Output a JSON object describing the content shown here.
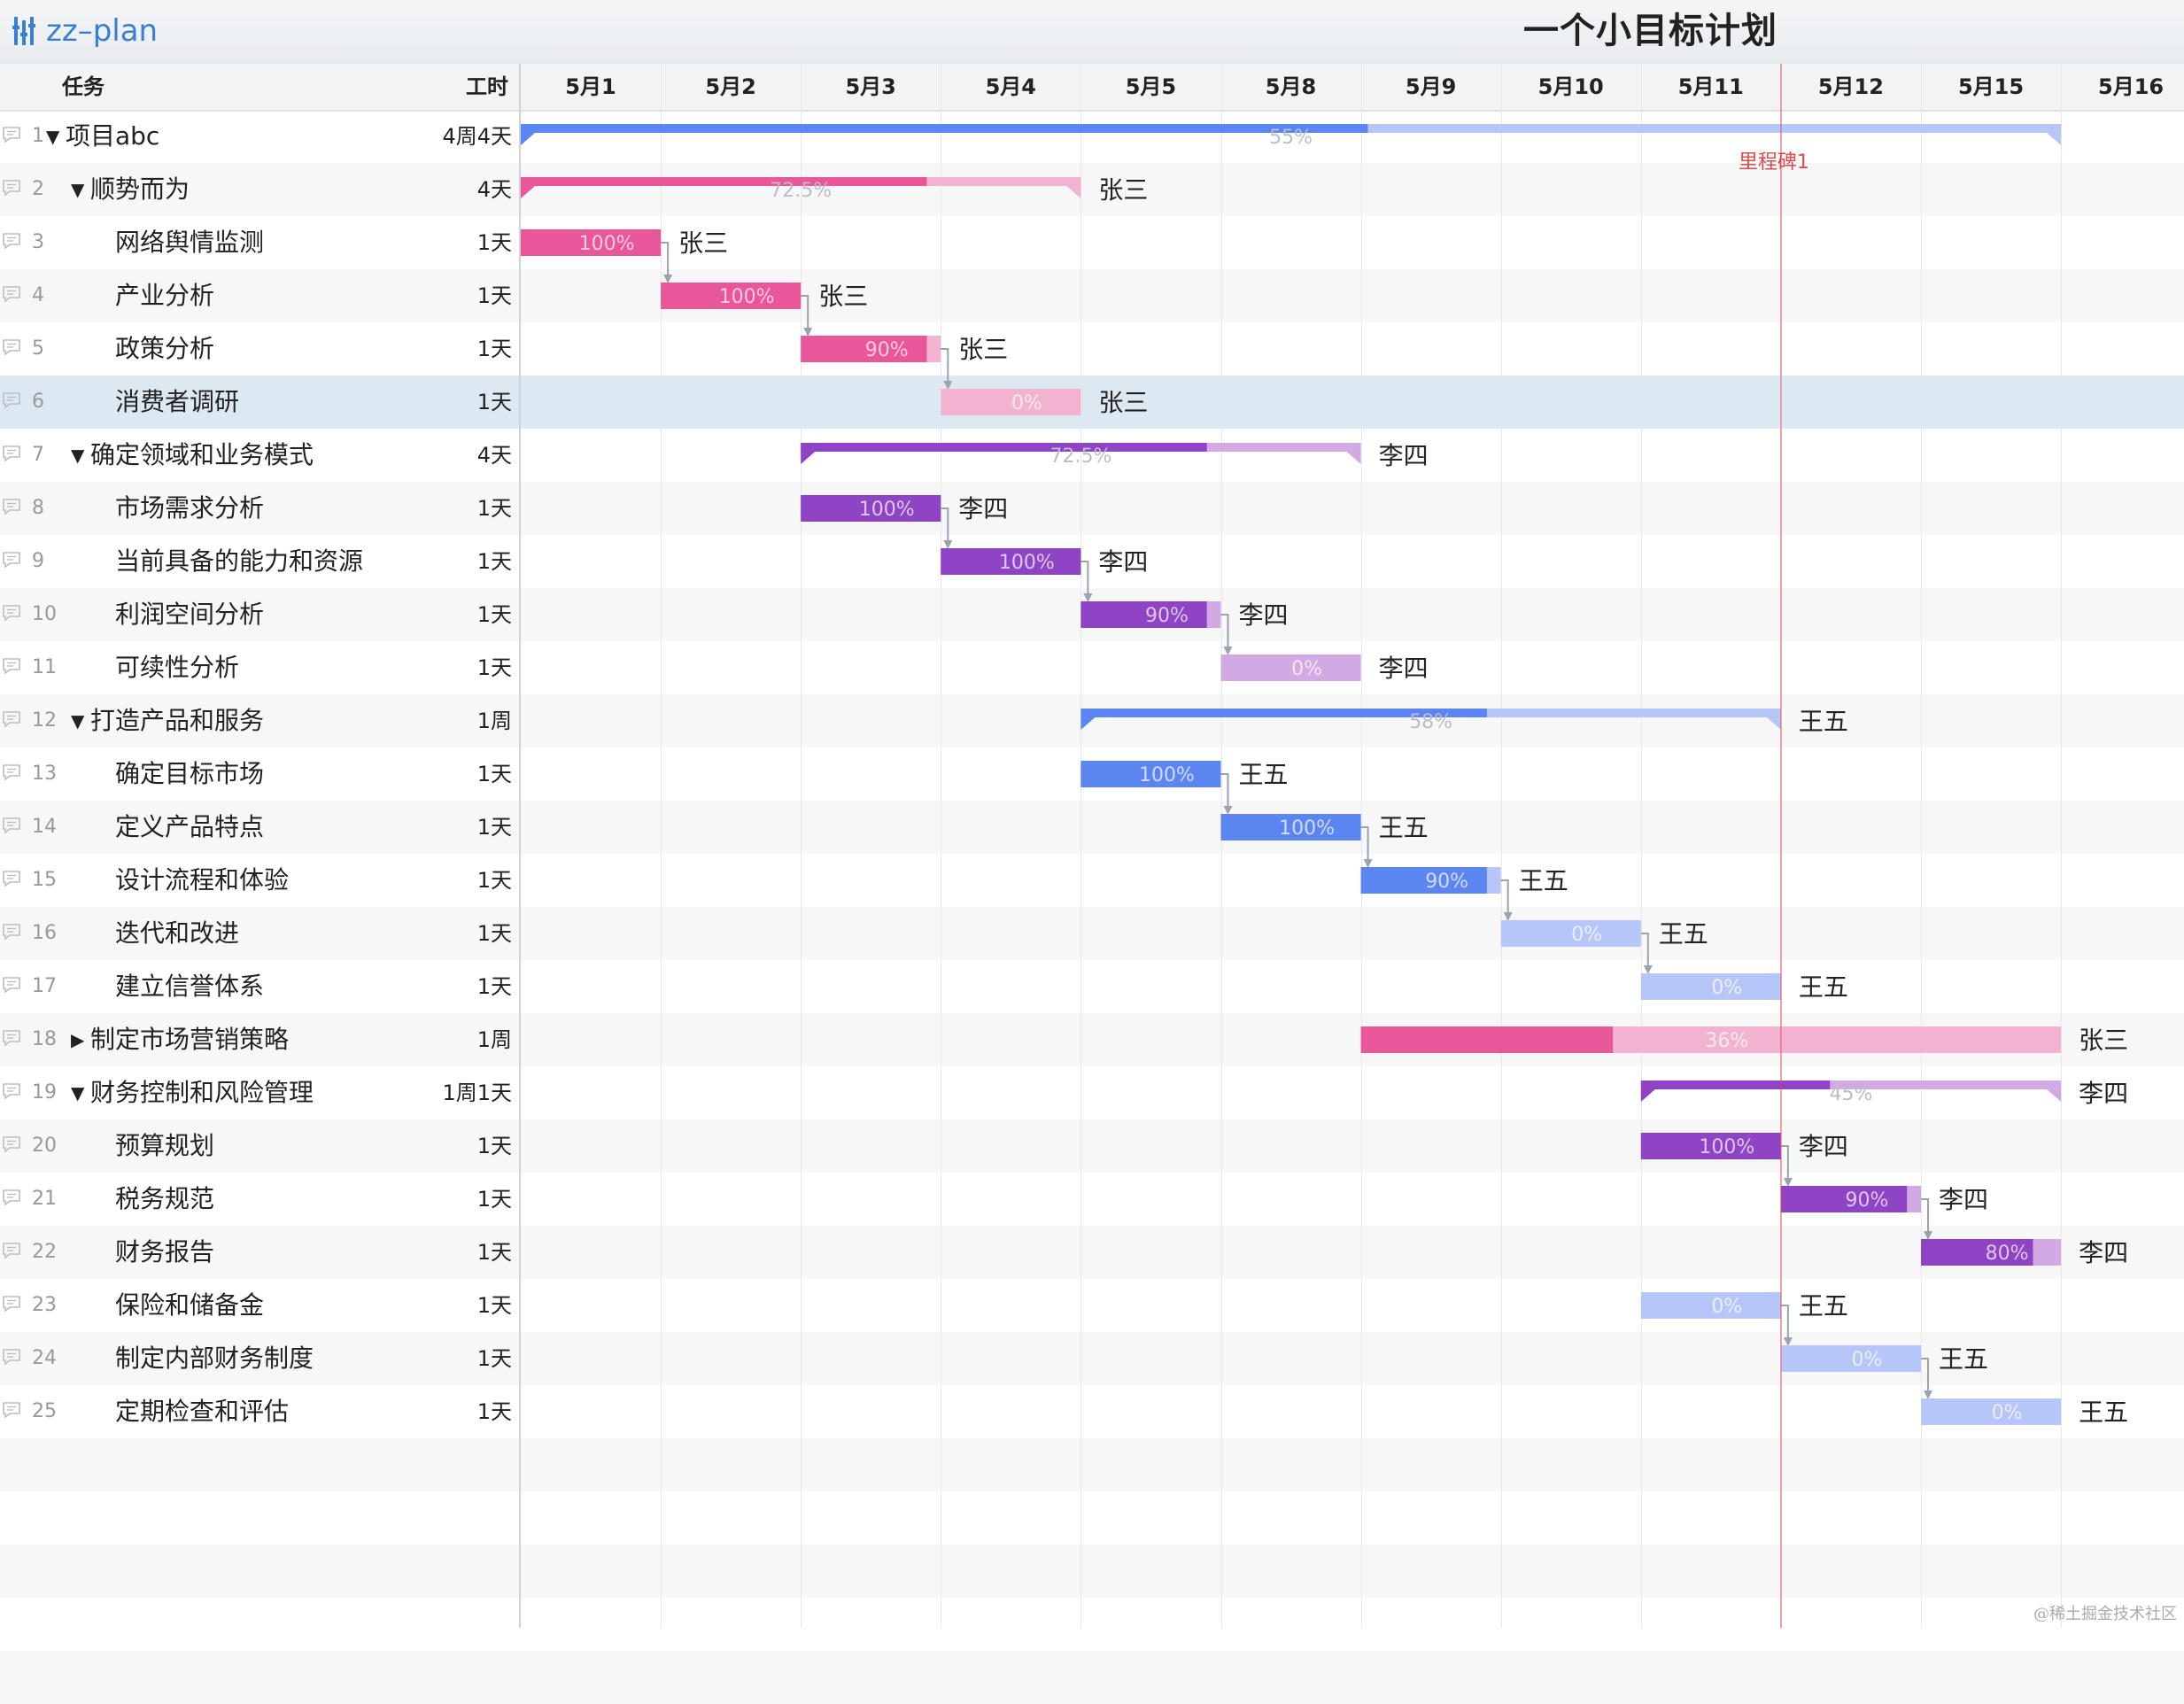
{
  "app": {
    "name": "zz–plan",
    "title": "一个小目标计划",
    "watermark": "@稀土掘金技术社区"
  },
  "columns": {
    "task": "任务",
    "duration": "工时"
  },
  "dates": [
    "5月1",
    "5月2",
    "5月3",
    "5月4",
    "5月5",
    "5月8",
    "5月9",
    "5月10",
    "5月11",
    "5月12",
    "5月15",
    "5月16"
  ],
  "milestone": {
    "label": "里程碑1",
    "position_day": 9
  },
  "colors": {
    "pink": "#e9579a",
    "pink_light": "#f2b3d0",
    "purple": "#8e44c4",
    "purple_light": "#d3a9e3",
    "blue": "#5b86f2",
    "blue_light": "#b7c6f8",
    "milestone": "#e24848",
    "selected_row": "#dce8f2"
  },
  "tasks": [
    {
      "id": "1",
      "name": "项目abc",
      "duration": "4周4天",
      "level": 0,
      "toggle": "▼",
      "type": "summary",
      "color": "blue",
      "start": 0,
      "end": 11,
      "progress": 55,
      "label": "55%",
      "assignee": ""
    },
    {
      "id": "2",
      "name": "顺势而为",
      "duration": "4天",
      "level": 1,
      "toggle": "▼",
      "type": "summary",
      "color": "pink",
      "start": 0,
      "end": 4,
      "progress": 72.5,
      "label": "72.5%",
      "assignee": "张三"
    },
    {
      "id": "3",
      "name": "网络舆情监测",
      "duration": "1天",
      "level": 2,
      "toggle": "",
      "type": "task",
      "color": "pink",
      "start": 0,
      "end": 1,
      "progress": 100,
      "label": "100%",
      "assignee": "张三",
      "link_to_next": true
    },
    {
      "id": "4",
      "name": "产业分析",
      "duration": "1天",
      "level": 2,
      "toggle": "",
      "type": "task",
      "color": "pink",
      "start": 1,
      "end": 2,
      "progress": 100,
      "label": "100%",
      "assignee": "张三",
      "link_to_next": true
    },
    {
      "id": "5",
      "name": "政策分析",
      "duration": "1天",
      "level": 2,
      "toggle": "",
      "type": "task",
      "color": "pink",
      "start": 2,
      "end": 3,
      "progress": 90,
      "label": "90%",
      "assignee": "张三",
      "link_to_next": true
    },
    {
      "id": "6",
      "name": "消费者调研",
      "duration": "1天",
      "level": 2,
      "toggle": "",
      "type": "task",
      "color": "pink",
      "start": 3,
      "end": 4,
      "progress": 0,
      "label": "0%",
      "assignee": "张三",
      "selected": true
    },
    {
      "id": "7",
      "name": "确定领域和业务模式",
      "duration": "4天",
      "level": 1,
      "toggle": "▼",
      "type": "summary",
      "color": "purple",
      "start": 2,
      "end": 6,
      "progress": 72.5,
      "label": "72.5%",
      "assignee": "李四"
    },
    {
      "id": "8",
      "name": "市场需求分析",
      "duration": "1天",
      "level": 2,
      "toggle": "",
      "type": "task",
      "color": "purple",
      "start": 2,
      "end": 3,
      "progress": 100,
      "label": "100%",
      "assignee": "李四",
      "link_to_next": true
    },
    {
      "id": "9",
      "name": "当前具备的能力和资源",
      "duration": "1天",
      "level": 2,
      "toggle": "",
      "type": "task",
      "color": "purple",
      "start": 3,
      "end": 4,
      "progress": 100,
      "label": "100%",
      "assignee": "李四",
      "link_to_next": true
    },
    {
      "id": "10",
      "name": "利润空间分析",
      "duration": "1天",
      "level": 2,
      "toggle": "",
      "type": "task",
      "color": "purple",
      "start": 4,
      "end": 5,
      "progress": 90,
      "label": "90%",
      "assignee": "李四",
      "link_to_next": true
    },
    {
      "id": "11",
      "name": "可续性分析",
      "duration": "1天",
      "level": 2,
      "toggle": "",
      "type": "task",
      "color": "purple",
      "start": 5,
      "end": 6,
      "progress": 0,
      "label": "0%",
      "assignee": "李四"
    },
    {
      "id": "12",
      "name": "打造产品和服务",
      "duration": "1周",
      "level": 1,
      "toggle": "▼",
      "type": "summary",
      "color": "blue",
      "start": 4,
      "end": 9,
      "progress": 58,
      "label": "58%",
      "assignee": "王五"
    },
    {
      "id": "13",
      "name": "确定目标市场",
      "duration": "1天",
      "level": 2,
      "toggle": "",
      "type": "task",
      "color": "blue",
      "start": 4,
      "end": 5,
      "progress": 100,
      "label": "100%",
      "assignee": "王五",
      "link_to_next": true
    },
    {
      "id": "14",
      "name": "定义产品特点",
      "duration": "1天",
      "level": 2,
      "toggle": "",
      "type": "task",
      "color": "blue",
      "start": 5,
      "end": 6,
      "progress": 100,
      "label": "100%",
      "assignee": "王五",
      "link_to_next": true
    },
    {
      "id": "15",
      "name": "设计流程和体验",
      "duration": "1天",
      "level": 2,
      "toggle": "",
      "type": "task",
      "color": "blue",
      "start": 6,
      "end": 7,
      "progress": 90,
      "label": "90%",
      "assignee": "王五",
      "link_to_next": true
    },
    {
      "id": "16",
      "name": "迭代和改进",
      "duration": "1天",
      "level": 2,
      "toggle": "",
      "type": "task",
      "color": "blue",
      "start": 7,
      "end": 8,
      "progress": 0,
      "label": "0%",
      "assignee": "王五",
      "link_to_next": true
    },
    {
      "id": "17",
      "name": "建立信誉体系",
      "duration": "1天",
      "level": 2,
      "toggle": "",
      "type": "task",
      "color": "blue",
      "start": 8,
      "end": 9,
      "progress": 0,
      "label": "0%",
      "assignee": "王五"
    },
    {
      "id": "18",
      "name": "制定市场营销策略",
      "duration": "1周",
      "level": 1,
      "toggle": "▶",
      "type": "task",
      "color": "pink",
      "start": 6,
      "end": 11,
      "progress": 36,
      "label": "36%",
      "assignee": "张三"
    },
    {
      "id": "19",
      "name": "财务控制和风险管理",
      "duration": "1周1天",
      "level": 1,
      "toggle": "▼",
      "type": "summary",
      "color": "purple",
      "start": 8,
      "end": 11,
      "progress": 45,
      "label": "45%",
      "assignee": "李四"
    },
    {
      "id": "20",
      "name": "预算规划",
      "duration": "1天",
      "level": 2,
      "toggle": "",
      "type": "task",
      "color": "purple",
      "start": 8,
      "end": 9,
      "progress": 100,
      "label": "100%",
      "assignee": "李四",
      "link_to_next": true
    },
    {
      "id": "21",
      "name": "税务规范",
      "duration": "1天",
      "level": 2,
      "toggle": "",
      "type": "task",
      "color": "purple",
      "start": 9,
      "end": 10,
      "progress": 90,
      "label": "90%",
      "assignee": "李四",
      "link_to_next": true
    },
    {
      "id": "22",
      "name": "财务报告",
      "duration": "1天",
      "level": 2,
      "toggle": "",
      "type": "task",
      "color": "purple",
      "start": 10,
      "end": 11,
      "progress": 80,
      "label": "80%",
      "assignee": "李四"
    },
    {
      "id": "23",
      "name": "保险和储备金",
      "duration": "1天",
      "level": 2,
      "toggle": "",
      "type": "task",
      "color": "blue",
      "start": 8,
      "end": 9,
      "progress": 0,
      "label": "0%",
      "assignee": "王五",
      "link_to_next": true
    },
    {
      "id": "24",
      "name": "制定内部财务制度",
      "duration": "1天",
      "level": 2,
      "toggle": "",
      "type": "task",
      "color": "blue",
      "start": 9,
      "end": 10,
      "progress": 0,
      "label": "0%",
      "assignee": "王五",
      "link_to_next": true
    },
    {
      "id": "25",
      "name": "定期检查和评估",
      "duration": "1天",
      "level": 2,
      "toggle": "",
      "type": "task",
      "color": "blue",
      "start": 10,
      "end": 11,
      "progress": 0,
      "label": "0%",
      "assignee": "王五"
    }
  ]
}
